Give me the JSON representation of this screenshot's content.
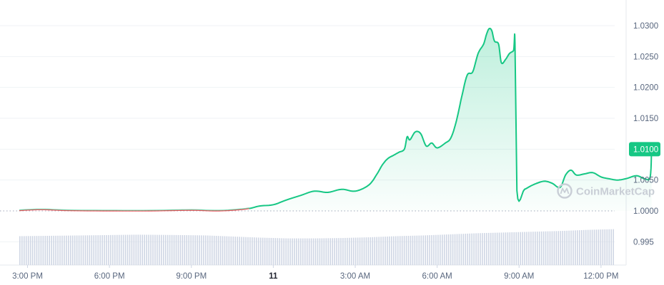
{
  "chart_data": {
    "type": "area",
    "title": "",
    "xlabel": "",
    "ylabel": "",
    "x_ticks": [
      "3:00 PM",
      "6:00 PM",
      "9:00 PM",
      "11",
      "3:00 AM",
      "6:00 AM",
      "9:00 AM",
      "12:00 PM"
    ],
    "y_ticks": [
      "1.0300",
      "1.0250",
      "1.0200",
      "1.0150",
      "1.0100",
      "1.0050",
      "1.0000",
      "0.995"
    ],
    "ylim": [
      0.9925,
      1.0325
    ],
    "x_unit": "hours from 3:00 PM",
    "xlim": [
      -0.3,
      22.9
    ],
    "reference_line": {
      "value": 1.0,
      "style": "dotted"
    },
    "current_price_label": "1.0100",
    "watermark": "CoinMarketCap",
    "colors": {
      "line_up": "#16c784",
      "line_flat": "#ea3943",
      "area_fill": "#16c784",
      "volume_bars": "#cfd6e4",
      "grid": "#eff2f5",
      "axis_text": "#58667e"
    },
    "series": [
      {
        "name": "",
        "points": [
          [
            -0.3,
            1.00005
          ],
          [
            0.5,
            1.0002
          ],
          [
            1.5,
            1.00005
          ],
          [
            3.0,
            1.0
          ],
          [
            4.5,
            1.0
          ],
          [
            6.0,
            1.0001
          ],
          [
            7.0,
            1.0
          ],
          [
            8.0,
            1.0003
          ],
          [
            8.5,
            1.0008
          ],
          [
            9.0,
            1.001
          ],
          [
            9.5,
            1.0018
          ],
          [
            10.0,
            1.0025
          ],
          [
            10.5,
            1.0032
          ],
          [
            11.0,
            1.003
          ],
          [
            11.5,
            1.0035
          ],
          [
            12.0,
            1.0032
          ],
          [
            12.5,
            1.0042
          ],
          [
            12.8,
            1.006
          ],
          [
            13.0,
            1.0075
          ],
          [
            13.2,
            1.0085
          ],
          [
            13.4,
            1.009
          ],
          [
            13.6,
            1.0095
          ],
          [
            13.8,
            1.01
          ],
          [
            13.9,
            1.012
          ],
          [
            14.0,
            1.0115
          ],
          [
            14.2,
            1.0128
          ],
          [
            14.4,
            1.0125
          ],
          [
            14.6,
            1.0105
          ],
          [
            14.8,
            1.011
          ],
          [
            15.0,
            1.0102
          ],
          [
            15.3,
            1.011
          ],
          [
            15.5,
            1.0118
          ],
          [
            15.7,
            1.0145
          ],
          [
            15.9,
            1.0185
          ],
          [
            16.1,
            1.022
          ],
          [
            16.3,
            1.0225
          ],
          [
            16.5,
            1.0255
          ],
          [
            16.7,
            1.027
          ],
          [
            16.8,
            1.0285
          ],
          [
            16.9,
            1.0295
          ],
          [
            17.0,
            1.0292
          ],
          [
            17.1,
            1.0275
          ],
          [
            17.25,
            1.027
          ],
          [
            17.35,
            1.024
          ],
          [
            17.5,
            1.0245
          ],
          [
            17.65,
            1.0255
          ],
          [
            17.8,
            1.026
          ],
          [
            17.85,
            1.0272
          ],
          [
            17.92,
            1.0033
          ],
          [
            18.2,
            1.0035
          ],
          [
            18.5,
            1.0042
          ],
          [
            18.9,
            1.0048
          ],
          [
            19.2,
            1.0045
          ],
          [
            19.5,
            1.0038
          ],
          [
            19.7,
            1.0058
          ],
          [
            19.9,
            1.0066
          ],
          [
            20.1,
            1.0058
          ],
          [
            20.4,
            1.006
          ],
          [
            20.7,
            1.0062
          ],
          [
            21.0,
            1.0055
          ],
          [
            21.3,
            1.0052
          ],
          [
            21.6,
            1.005
          ],
          [
            21.9,
            1.0052
          ],
          [
            22.3,
            1.0057
          ],
          [
            22.6,
            1.0052
          ],
          [
            22.8,
            1.0055
          ],
          [
            22.85,
            1.01
          ]
        ]
      }
    ],
    "volume": {
      "style": "bars",
      "relative_heights": [
        [
          -0.3,
          0.78
        ],
        [
          2.0,
          0.8
        ],
        [
          4.0,
          0.82
        ],
        [
          5.5,
          0.81
        ],
        [
          6.5,
          0.8
        ],
        [
          7.5,
          0.77
        ],
        [
          8.5,
          0.74
        ],
        [
          9.5,
          0.72
        ],
        [
          10.5,
          0.72
        ],
        [
          11.5,
          0.73
        ],
        [
          12.5,
          0.75
        ],
        [
          13.5,
          0.78
        ],
        [
          14.5,
          0.8
        ],
        [
          15.5,
          0.83
        ],
        [
          16.5,
          0.86
        ],
        [
          17.5,
          0.88
        ],
        [
          18.5,
          0.9
        ],
        [
          19.5,
          0.92
        ],
        [
          20.5,
          0.95
        ],
        [
          21.5,
          0.97
        ],
        [
          22.9,
          0.97
        ]
      ]
    }
  }
}
